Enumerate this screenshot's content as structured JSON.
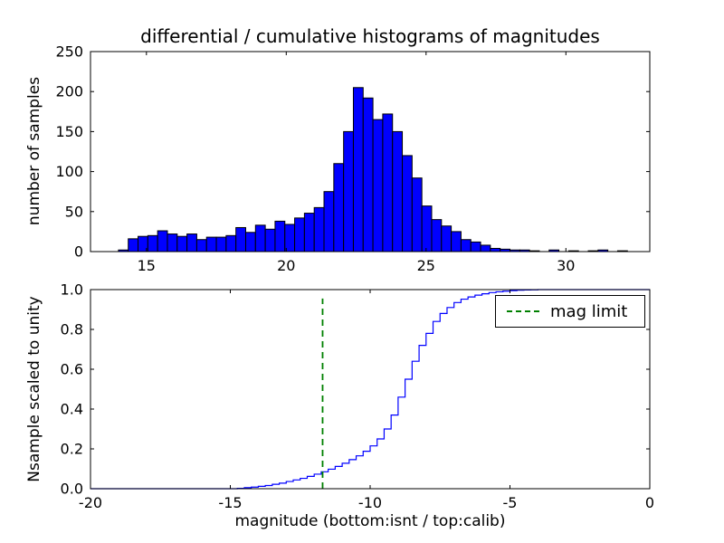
{
  "figure": {
    "background": "#ffffff",
    "axes_color": "#000000"
  },
  "chart_data": [
    {
      "type": "bar",
      "title": "differential / cumulative histograms of magnitudes",
      "ylabel": "number of samples",
      "xlabel": "",
      "xlim": [
        13,
        33
      ],
      "ylim": [
        0,
        250
      ],
      "xticks": [
        15,
        20,
        25,
        30
      ],
      "yticks": [
        0,
        50,
        100,
        150,
        200,
        250
      ],
      "grid": false,
      "bar_color": "#0000ff",
      "bar_edge_color": "#000000",
      "bin_start": 14.0,
      "bin_width": 0.35,
      "values": [
        2,
        16,
        19,
        20,
        26,
        22,
        19,
        22,
        15,
        18,
        18,
        20,
        30,
        24,
        33,
        28,
        38,
        34,
        42,
        48,
        55,
        75,
        110,
        150,
        205,
        192,
        165,
        172,
        150,
        120,
        92,
        57,
        40,
        32,
        25,
        15,
        12,
        8,
        4,
        3,
        2,
        2,
        1,
        0,
        2,
        0,
        1,
        0,
        1,
        2,
        0,
        1
      ]
    },
    {
      "type": "line",
      "style": "step",
      "ylabel": "Nsample scaled to unity",
      "xlabel": "magnitude (bottom:isnt / top:calib)",
      "xlim": [
        -20,
        0
      ],
      "ylim": [
        0.0,
        1.0
      ],
      "xticks": [
        -20,
        -15,
        -10,
        -5,
        0
      ],
      "yticks": [
        0.0,
        0.2,
        0.4,
        0.6,
        0.8,
        1.0
      ],
      "grid": false,
      "line_color": "#0000ff",
      "x": [
        -15.0,
        -14.75,
        -14.5,
        -14.25,
        -14.0,
        -13.75,
        -13.5,
        -13.25,
        -13.0,
        -12.75,
        -12.5,
        -12.25,
        -12.0,
        -11.75,
        -11.5,
        -11.25,
        -11.0,
        -10.75,
        -10.5,
        -10.25,
        -10.0,
        -9.75,
        -9.5,
        -9.25,
        -9.0,
        -8.75,
        -8.5,
        -8.25,
        -8.0,
        -7.75,
        -7.5,
        -7.25,
        -7.0,
        -6.75,
        -6.5,
        -6.25,
        -6.0,
        -5.75,
        -5.5,
        -5.25,
        -5.0,
        -4.75,
        -4.5,
        -4.25,
        -4.0
      ],
      "y": [
        0.0,
        0.002,
        0.005,
        0.008,
        0.012,
        0.016,
        0.022,
        0.028,
        0.036,
        0.044,
        0.052,
        0.062,
        0.073,
        0.085,
        0.098,
        0.112,
        0.128,
        0.146,
        0.165,
        0.188,
        0.215,
        0.25,
        0.3,
        0.37,
        0.46,
        0.55,
        0.64,
        0.72,
        0.78,
        0.84,
        0.88,
        0.91,
        0.935,
        0.952,
        0.963,
        0.972,
        0.979,
        0.985,
        0.989,
        0.992,
        0.995,
        0.997,
        0.998,
        0.999,
        1.0
      ],
      "mag_limit": {
        "x": -11.7,
        "color": "#008000",
        "linestyle": "dashed",
        "label": "mag limit"
      },
      "legend": {
        "position": "upper right",
        "entries": [
          "mag limit"
        ]
      }
    }
  ]
}
